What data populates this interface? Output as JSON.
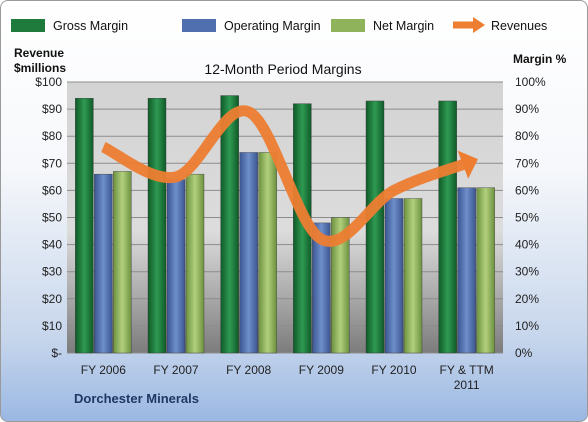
{
  "chart_data": {
    "type": "bar",
    "title": "12-Month Period Margins",
    "ylabel_left": [
      "Revenue",
      "$millions"
    ],
    "ylabel_right": "Margin %",
    "company": "Dorchester Minerals",
    "categories": [
      "FY 2006",
      "FY 2007",
      "FY 2008",
      "FY 2009",
      "FY 2010",
      "FY & TTM 2011"
    ],
    "left_ticks": [
      "$-",
      "$10",
      "$20",
      "$30",
      "$40",
      "$50",
      "$60",
      "$70",
      "$80",
      "$90",
      "$100"
    ],
    "right_ticks": [
      "0%",
      "10%",
      "20%",
      "30%",
      "40%",
      "50%",
      "60%",
      "70%",
      "80%",
      "90%",
      "100%"
    ],
    "left_ylim": [
      0,
      100
    ],
    "right_ylim": [
      0,
      100
    ],
    "grid": true,
    "legend_position": "top",
    "series": [
      {
        "name": "Gross Margin",
        "kind": "bar",
        "axis": "right",
        "color": "#1e7b3c",
        "values": [
          94,
          94,
          95,
          92,
          93,
          93
        ]
      },
      {
        "name": "Operating Margin",
        "kind": "bar",
        "axis": "right",
        "color": "#4f6fae",
        "values": [
          66,
          64,
          74,
          48,
          57,
          61
        ]
      },
      {
        "name": "Net Margin",
        "kind": "bar",
        "axis": "right",
        "color": "#8fb35b",
        "values": [
          67,
          66,
          74,
          50,
          57,
          61
        ]
      },
      {
        "name": "Revenues",
        "kind": "line",
        "axis": "left",
        "color": "#ed7d31",
        "values": [
          76,
          65,
          89,
          42,
          60,
          70
        ]
      }
    ]
  }
}
